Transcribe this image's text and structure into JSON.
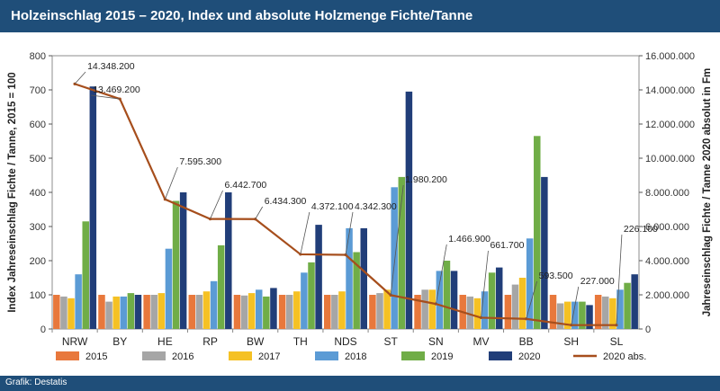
{
  "header": {
    "title": "Holzeinschlag 2015 – 2020, Index und absolute Holzmenge Fichte/Tanne"
  },
  "footer": {
    "source": "Grafik: Destatis"
  },
  "chart_data": {
    "type": "bar",
    "categories": [
      "NRW",
      "BY",
      "HE",
      "RP",
      "BW",
      "TH",
      "NDS",
      "ST",
      "SN",
      "MV",
      "BB",
      "SH",
      "SL"
    ],
    "series": [
      {
        "name": "2015",
        "color": "#e8783c",
        "values": [
          100,
          100,
          100,
          100,
          100,
          100,
          100,
          100,
          100,
          100,
          100,
          100,
          100
        ]
      },
      {
        "name": "2016",
        "color": "#a6a6a6",
        "values": [
          95,
          80,
          100,
          100,
          98,
          100,
          100,
          105,
          115,
          95,
          130,
          75,
          95
        ]
      },
      {
        "name": "2017",
        "color": "#f5c124",
        "values": [
          90,
          95,
          105,
          110,
          105,
          110,
          110,
          115,
          115,
          90,
          150,
          80,
          90
        ]
      },
      {
        "name": "2018",
        "color": "#5b9bd5",
        "values": [
          160,
          95,
          235,
          140,
          115,
          165,
          295,
          415,
          170,
          110,
          265,
          80,
          115
        ]
      },
      {
        "name": "2019",
        "color": "#70ad47",
        "values": [
          315,
          105,
          375,
          245,
          95,
          195,
          225,
          445,
          200,
          165,
          565,
          80,
          135
        ]
      },
      {
        "name": "2020",
        "color": "#213e79",
        "values": [
          710,
          100,
          400,
          400,
          120,
          305,
          295,
          695,
          170,
          180,
          445,
          70,
          160
        ]
      }
    ],
    "line": {
      "name": "2020 abs.",
      "color": "#a64e1c",
      "values": [
        14348200,
        13469200,
        7595300,
        6442700,
        6434300,
        4372100,
        4342300,
        1980200,
        1466900,
        661700,
        593500,
        227000,
        226100
      ],
      "labels": [
        "14.348.200",
        "13.469.200",
        "7.595.300",
        "6.442.700",
        "6.434.300",
        "4.372.100",
        "4.342.300",
        "1.980.200",
        "1.466.900",
        "661.700",
        "593.500",
        "227.000",
        "226.100"
      ]
    },
    "ylabel": "Index Jahreseinschlag Fichte / Tanne, 2015 = 100",
    "y2label": "Jahreseinschlag Fichte / Tanne 2020 absolut in Fm",
    "ylim": [
      0,
      800
    ],
    "y2lim": [
      0,
      16000000
    ],
    "yticks": [
      "0",
      "100",
      "200",
      "300",
      "400",
      "500",
      "600",
      "700",
      "800"
    ],
    "y2ticks": [
      "0",
      "2.000.000",
      "4.000.000",
      "6.000.000",
      "8.000.000",
      "10.000.000",
      "12.000.000",
      "14.000.000",
      "16.000.000"
    ],
    "grid": false,
    "legend_position": "bottom"
  }
}
